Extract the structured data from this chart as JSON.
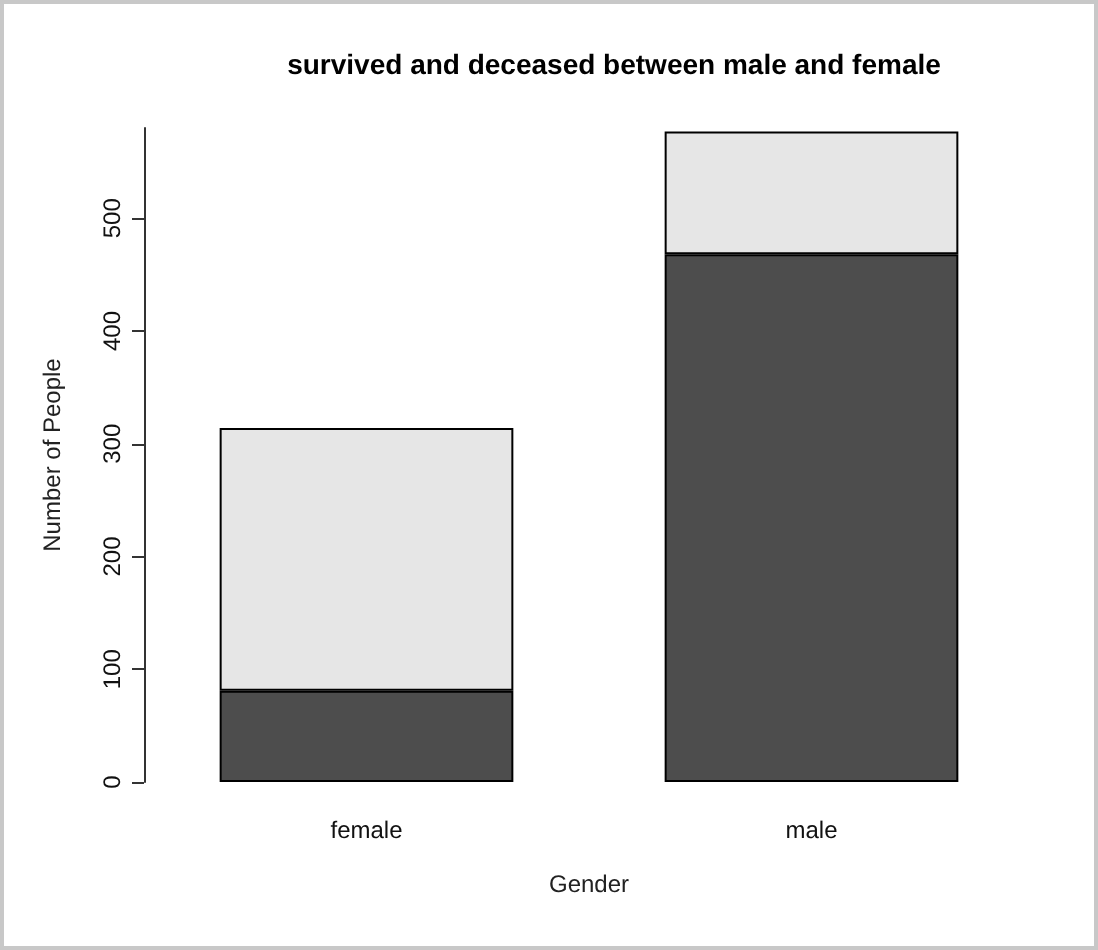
{
  "chart_data": {
    "type": "bar",
    "title": "survived and deceased between male and female",
    "xlabel": "Gender",
    "ylabel": "Number of People",
    "categories": [
      "female",
      "male"
    ],
    "stacked": true,
    "series": [
      {
        "color": "#4d4d4d",
        "values": [
          81,
          468
        ]
      },
      {
        "color": "#e6e6e6",
        "values": [
          233,
          109
        ]
      }
    ],
    "ylim": [
      0,
      580
    ],
    "yticks": [
      0,
      100,
      200,
      300,
      400,
      500
    ],
    "grid": false
  }
}
